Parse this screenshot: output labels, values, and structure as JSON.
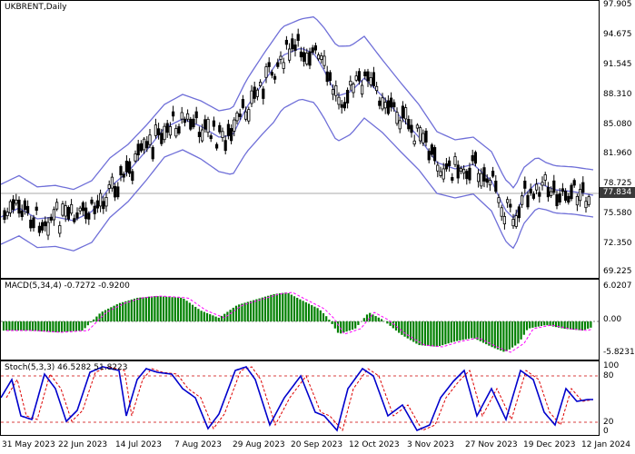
{
  "main": {
    "title": "UKBRENT,Daily",
    "price_axis": [
      "97.905",
      "94.675",
      "91.545",
      "88.310",
      "85.080",
      "81.960",
      "78.725",
      "75.580",
      "72.350",
      "69.225"
    ],
    "current_price": "77.834",
    "colors": {
      "candle": "#000000",
      "band": "#6f6fd8",
      "current_line": "#aaaaaa"
    }
  },
  "macd": {
    "title": "MACD(5,34,4) -0.7272 -0.9200",
    "axis": [
      "6.0207",
      "0.00",
      "-5.8231"
    ],
    "colors": {
      "histogram": "#008000",
      "signal": "#ff00ff"
    }
  },
  "stoch": {
    "title": "Stoch(5,3,3) 46.5282 51.8223",
    "axis": [
      "100",
      "80",
      "20",
      "0"
    ],
    "colors": {
      "main": "#0000cc",
      "signal": "#dd0000",
      "levels": "#cc0000"
    }
  },
  "x_axis": [
    "31 May 2023",
    "22 Jun 2023",
    "14 Jul 2023",
    "7 Aug 2023",
    "29 Aug 2023",
    "20 Sep 2023",
    "12 Oct 2023",
    "3 Nov 2023",
    "27 Nov 2023",
    "19 Dec 2023",
    "12 Jan 2024"
  ]
}
